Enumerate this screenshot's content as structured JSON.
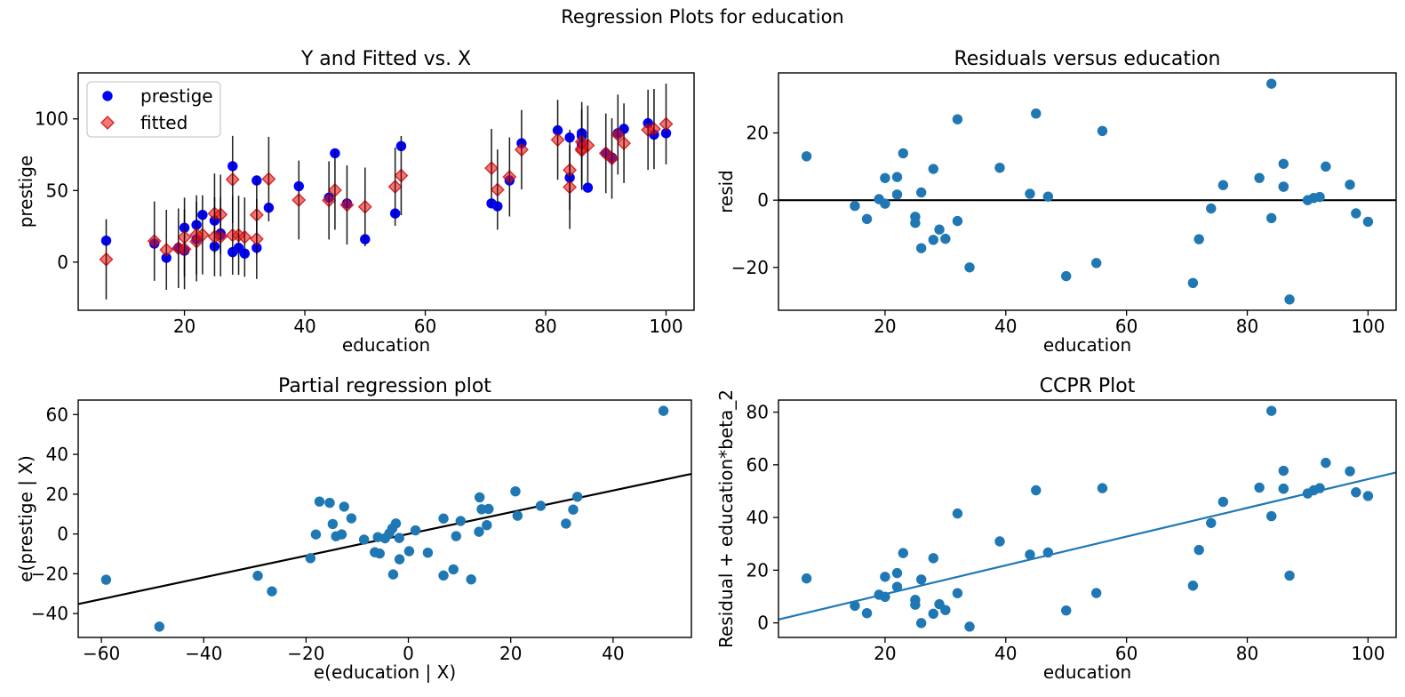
{
  "figure": {
    "title": "Regression Plots for education",
    "background": "#ffffff",
    "colors": {
      "axes_edge": "#000000",
      "text": "#000000",
      "prestige_marker": "#0000ff",
      "fitted_marker_fill": "rgba(235,25,25,0.6)",
      "fitted_marker_edge": "rgba(200,10,10,0.8)",
      "errorbar": "rgba(0,0,0,0.7)",
      "scatter_point": "#1f77b4",
      "black_line": "#000000",
      "ccpr_line": "#1f77b4",
      "legend_border": "#cccccc"
    }
  },
  "chart_data": [
    {
      "id": "y_and_fitted_vs_x",
      "type": "scatter",
      "position": "top-left",
      "title": "Y and Fitted vs. X",
      "xlabel": "education",
      "ylabel": "prestige",
      "xlim": [
        2.35,
        104.65
      ],
      "ylim": [
        -33.6,
        132.1
      ],
      "xticks": [
        20,
        40,
        60,
        80,
        100
      ],
      "yticks": [
        0,
        50,
        100
      ],
      "grid": false,
      "legend": {
        "location": "upper left",
        "entries": [
          {
            "label": "prestige",
            "marker": "circle",
            "color": "#0000ff"
          },
          {
            "label": "fitted",
            "marker": "diamond",
            "color": "rgba(235,25,25,0.6)"
          }
        ]
      },
      "x": [
        86,
        76,
        92,
        90,
        86,
        84,
        93,
        100,
        87,
        86,
        74,
        98,
        97,
        84,
        91,
        34,
        45,
        56,
        44,
        82,
        72,
        55,
        71,
        50,
        23,
        39,
        28,
        32,
        22,
        25,
        29,
        7,
        26,
        19,
        15,
        20,
        26,
        28,
        17,
        22,
        30,
        25,
        20,
        47,
        32
      ],
      "series": [
        {
          "name": "prestige",
          "marker": "circle",
          "color": "#0000ff",
          "y": [
            82,
            83,
            90,
            76,
            90,
            87,
            93,
            90,
            52,
            88,
            57,
            89,
            97,
            59,
            73,
            38,
            76,
            81,
            45,
            92,
            39,
            34,
            41,
            16,
            33,
            53,
            67,
            57,
            26,
            29,
            10,
            15,
            19,
            10,
            13,
            24,
            20,
            7,
            3,
            16,
            6,
            11,
            8,
            41,
            10
          ]
        },
        {
          "name": "fitted",
          "marker": "diamond",
          "color": "rgba(235,25,25,0.6)",
          "y": [
            78.0,
            78.52,
            89.05,
            75.99,
            79.19,
            52.36,
            83.01,
            96.41,
            81.53,
            83.98,
            59.47,
            92.92,
            92.38,
            64.33,
            72.34,
            57.99,
            50.23,
            60.42,
            43.1,
            85.39,
            50.6,
            52.69,
            65.62,
            38.59,
            19.06,
            43.36,
            57.71,
            32.95,
            19.11,
            33.92,
            18.74,
            1.95,
            33.27,
            9.69,
            14.7,
            17.42,
            17.71,
            18.8,
            8.6,
            14.32,
            17.49,
            17.76,
            9.04,
            39.94,
            16.19
          ],
          "error_half": [
            27.7,
            27.7,
            27.9,
            27.8,
            27.7,
            29.2,
            27.8,
            28.1,
            27.7,
            27.8,
            27.6,
            28.0,
            28.0,
            28.0,
            28.1,
            29.5,
            27.6,
            27.6,
            27.3,
            27.9,
            28.0,
            27.3,
            27.4,
            27.4,
            27.6,
            27.5,
            30.4,
            27.5,
            27.6,
            27.9,
            27.6,
            28.0,
            27.8,
            27.8,
            27.7,
            27.6,
            27.6,
            27.6,
            27.9,
            27.7,
            27.7,
            27.6,
            27.9,
            27.6,
            27.9
          ]
        }
      ]
    },
    {
      "id": "residuals_vs_education",
      "type": "scatter",
      "position": "top-right",
      "title": "Residuals versus education",
      "xlabel": "education",
      "ylabel": "resid",
      "xlim": [
        2.35,
        104.65
      ],
      "ylim": [
        -32.74,
        37.85
      ],
      "xticks": [
        20,
        40,
        60,
        80,
        100
      ],
      "yticks": [
        -20,
        0,
        20
      ],
      "grid": false,
      "hline": 0,
      "x": [
        86,
        76,
        92,
        90,
        86,
        84,
        93,
        100,
        87,
        86,
        74,
        98,
        97,
        84,
        91,
        34,
        45,
        56,
        44,
        82,
        72,
        55,
        71,
        50,
        23,
        39,
        28,
        32,
        22,
        25,
        29,
        7,
        26,
        19,
        15,
        20,
        26,
        28,
        17,
        22,
        30,
        25,
        20,
        47,
        32
      ],
      "series": [
        {
          "name": "resid",
          "marker": "circle",
          "color": "#1f77b4",
          "y": [
            4.0,
            4.48,
            0.95,
            0.01,
            10.81,
            34.64,
            9.99,
            -6.41,
            -29.53,
            4.02,
            -2.47,
            -3.92,
            4.62,
            -5.33,
            0.66,
            -19.99,
            25.77,
            20.58,
            1.9,
            6.61,
            -11.6,
            -18.69,
            -24.62,
            -22.59,
            13.94,
            9.64,
            9.29,
            24.05,
            6.89,
            -4.92,
            -8.74,
            13.05,
            -14.27,
            0.31,
            -1.7,
            6.58,
            2.29,
            -11.8,
            -5.6,
            1.68,
            -11.49,
            -6.76,
            -1.04,
            1.06,
            -6.19
          ]
        }
      ]
    },
    {
      "id": "partial_regression",
      "type": "scatter",
      "position": "bottom-left",
      "title": "Partial regression plot",
      "xlabel": "e(education | X)",
      "ylabel": "e(prestige | X)",
      "xlim": [
        -64.53,
        55.31
      ],
      "ylim": [
        -51.99,
        67.28
      ],
      "xticks": [
        -60,
        -40,
        -20,
        0,
        20,
        40
      ],
      "yticks": [
        -40,
        -20,
        0,
        20,
        40,
        60
      ],
      "grid": false,
      "line": {
        "slope": 0.5458,
        "intercept": 0,
        "color": "#000000"
      },
      "x": [
        15.68,
        -3.14,
        10.21,
        25.86,
        13.92,
        49.86,
        20.92,
        13.8,
        12.27,
        6.86,
        21.33,
        15.33,
        14.33,
        32.21,
        33.03,
        -48.67,
        -17.38,
        -12.56,
        -8.67,
        -2.44,
        30.8,
        -2.97,
        6.86,
        8.8,
        -11.14,
        -18.08,
        -59.08,
        -15.38,
        -13.03,
        -29.44,
        0.15,
        -14.79,
        -26.67,
        -4.56,
        -19.14,
        -14.14,
        -3.73,
        -1.73,
        -6.56,
        -5.97,
        3.8,
        -5.61,
        -1.79,
        1.39,
        9.33
      ],
      "series": [
        {
          "name": "e(prestige | X)",
          "marker": "circle",
          "color": "#1f77b4",
          "y": [
            12.56,
            2.76,
            6.52,
            14.12,
            18.4,
            61.86,
            21.4,
            1.11,
            -22.84,
            7.76,
            9.17,
            4.43,
            12.43,
            12.25,
            18.69,
            -46.57,
            16.28,
            13.72,
            -2.83,
            5.27,
            5.21,
            -20.32,
            -20.88,
            -17.79,
            7.86,
            -0.24,
            -22.97,
            15.65,
            -0.23,
            -20.99,
            -8.66,
            4.98,
            -28.83,
            -2.18,
            -12.15,
            -1.15,
            0.26,
            -12.74,
            -9.18,
            -1.58,
            -9.42,
            -9.82,
            -2.02,
            1.81,
            -1.1
          ]
        }
      ]
    },
    {
      "id": "ccpr_plot",
      "type": "scatter",
      "position": "bottom-right",
      "title": "CCPR Plot",
      "xlabel": "education",
      "ylabel": "Residual + education*beta_2",
      "xlim": [
        2.35,
        104.65
      ],
      "ylim": [
        -5.53,
        84.59
      ],
      "xticks": [
        20,
        40,
        60,
        80,
        100
      ],
      "yticks": [
        0,
        20,
        40,
        60,
        80
      ],
      "grid": false,
      "line": {
        "slope": 0.5458,
        "intercept": 0,
        "color": "#1f77b4"
      },
      "x": [
        86,
        76,
        92,
        90,
        86,
        84,
        93,
        100,
        87,
        86,
        74,
        98,
        97,
        84,
        91,
        34,
        45,
        56,
        44,
        82,
        72,
        55,
        71,
        50,
        23,
        39,
        28,
        32,
        22,
        25,
        29,
        7,
        26,
        19,
        15,
        20,
        26,
        28,
        17,
        22,
        30,
        25,
        20,
        47,
        32
      ],
      "series": [
        {
          "name": "Residual + education*beta_2",
          "marker": "circle",
          "color": "#1f77b4",
          "y": [
            50.94,
            45.96,
            51.16,
            49.13,
            57.75,
            80.49,
            60.75,
            48.17,
            17.95,
            50.96,
            37.92,
            49.57,
            57.56,
            40.52,
            50.33,
            -1.43,
            50.33,
            51.14,
            25.92,
            51.37,
            27.7,
            11.33,
            14.13,
            4.7,
            26.49,
            30.93,
            24.57,
            41.52,
            18.9,
            8.73,
            7.09,
            16.87,
            -0.08,
            10.68,
            6.49,
            17.5,
            16.48,
            3.48,
            3.68,
            13.69,
            4.88,
            6.89,
            9.88,
            26.71,
            11.28
          ]
        }
      ]
    }
  ]
}
